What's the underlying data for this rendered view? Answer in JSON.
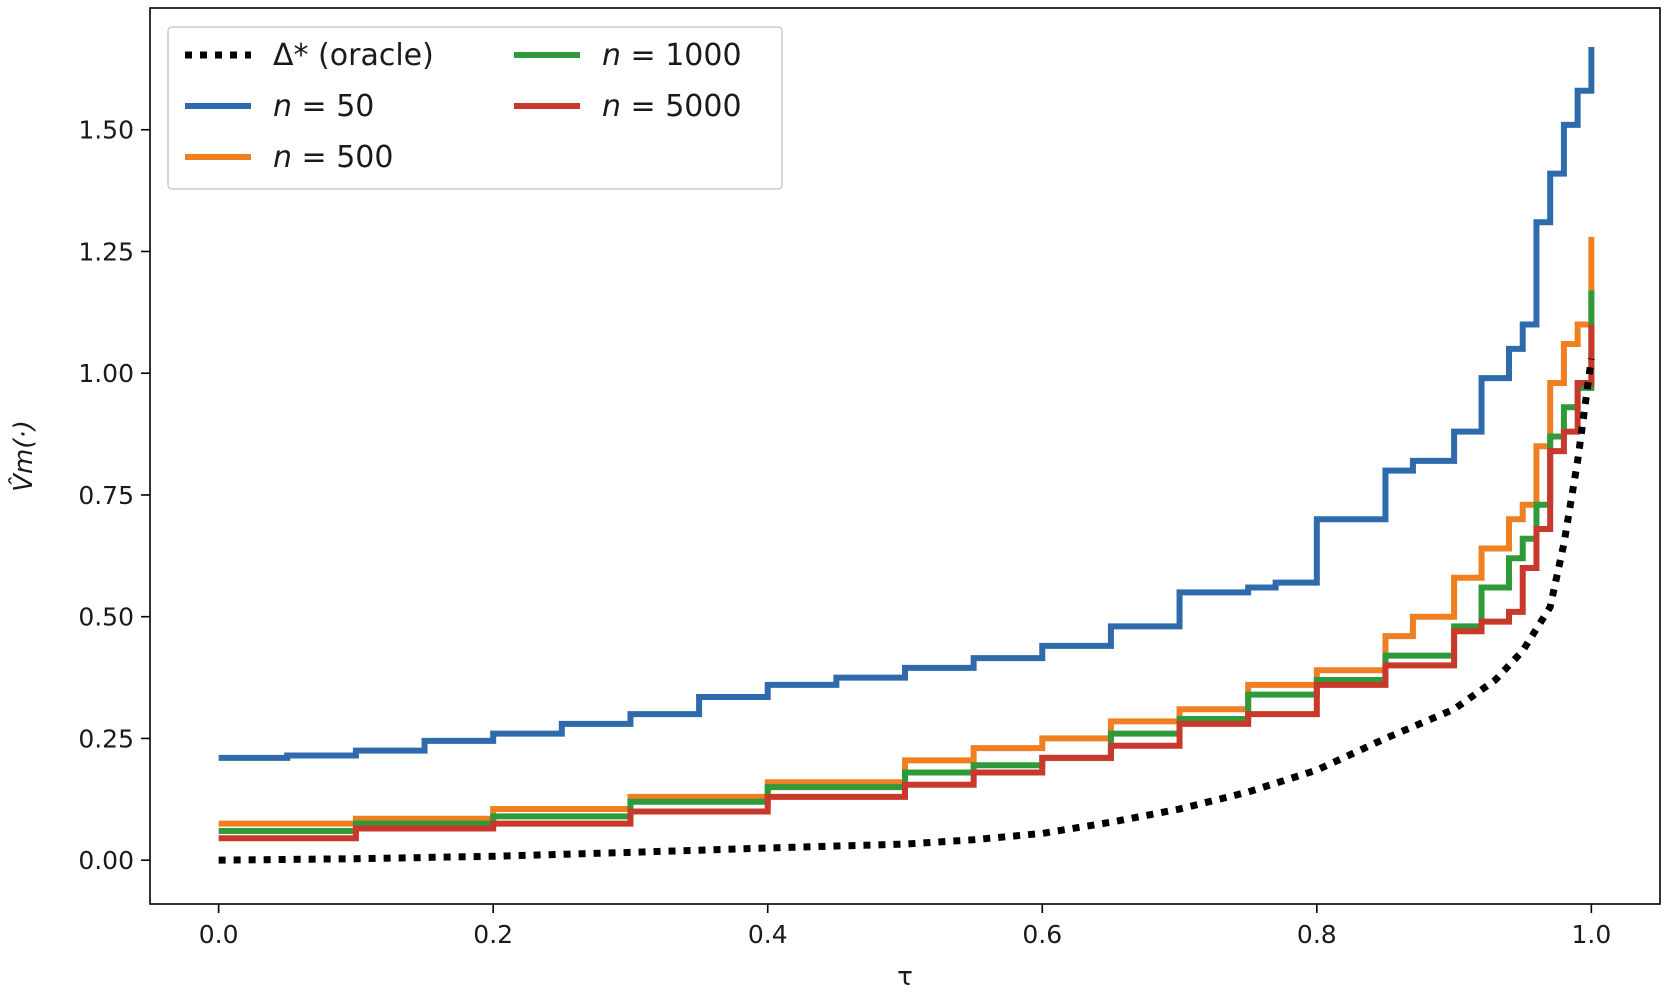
{
  "chart_data": {
    "type": "line",
    "title": "",
    "xlabel": "τ",
    "ylabel": "V̂m(·)",
    "xlim": [
      -0.05,
      1.05
    ],
    "ylim": [
      -0.09,
      1.75
    ],
    "xticks": [
      0.0,
      0.2,
      0.4,
      0.6,
      0.8,
      1.0
    ],
    "xtick_labels": [
      "0.0",
      "0.2",
      "0.4",
      "0.6",
      "0.8",
      "1.0"
    ],
    "yticks": [
      0.0,
      0.25,
      0.5,
      0.75,
      1.0,
      1.25,
      1.5
    ],
    "ytick_labels": [
      "0.00",
      "0.25",
      "0.50",
      "0.75",
      "1.00",
      "1.25",
      "1.50"
    ],
    "grid": false,
    "legend_position": "top-left",
    "series": [
      {
        "name": "Δ* (oracle)",
        "label_prefix": "Δ* (oracle)",
        "label_value": "",
        "color": "#000000",
        "style": "dotted",
        "x": [
          0.0,
          0.1,
          0.2,
          0.3,
          0.4,
          0.5,
          0.55,
          0.6,
          0.65,
          0.7,
          0.75,
          0.8,
          0.85,
          0.9,
          0.93,
          0.95,
          0.97,
          0.98,
          0.99,
          1.0
        ],
        "y": [
          0.0,
          0.003,
          0.008,
          0.016,
          0.025,
          0.033,
          0.042,
          0.055,
          0.078,
          0.105,
          0.14,
          0.185,
          0.25,
          0.31,
          0.37,
          0.43,
          0.52,
          0.65,
          0.82,
          1.03
        ]
      },
      {
        "name": "n = 50",
        "label_prefix": "n",
        "label_value": " = 50",
        "color": "#2f6bac",
        "style": "solid",
        "x": [
          0.0,
          0.05,
          0.1,
          0.15,
          0.2,
          0.25,
          0.3,
          0.35,
          0.4,
          0.45,
          0.5,
          0.55,
          0.6,
          0.65,
          0.7,
          0.75,
          0.77,
          0.8,
          0.85,
          0.87,
          0.9,
          0.92,
          0.94,
          0.95,
          0.96,
          0.97,
          0.98,
          0.99,
          1.0
        ],
        "y": [
          0.21,
          0.215,
          0.225,
          0.245,
          0.26,
          0.28,
          0.3,
          0.335,
          0.36,
          0.375,
          0.395,
          0.415,
          0.44,
          0.48,
          0.55,
          0.56,
          0.57,
          0.7,
          0.8,
          0.82,
          0.88,
          0.99,
          1.05,
          1.1,
          1.31,
          1.41,
          1.51,
          1.58,
          1.67
        ]
      },
      {
        "name": "n = 500",
        "label_prefix": "n",
        "label_value": " = 500",
        "color": "#f07f22",
        "style": "solid",
        "x": [
          0.0,
          0.1,
          0.2,
          0.3,
          0.4,
          0.5,
          0.55,
          0.6,
          0.65,
          0.7,
          0.75,
          0.8,
          0.85,
          0.87,
          0.9,
          0.92,
          0.94,
          0.95,
          0.96,
          0.97,
          0.98,
          0.99,
          1.0
        ],
        "y": [
          0.075,
          0.085,
          0.105,
          0.13,
          0.16,
          0.205,
          0.23,
          0.25,
          0.285,
          0.31,
          0.36,
          0.39,
          0.46,
          0.5,
          0.58,
          0.64,
          0.7,
          0.73,
          0.85,
          0.98,
          1.06,
          1.1,
          1.28
        ]
      },
      {
        "name": "n = 1000",
        "label_prefix": "n",
        "label_value": " = 1000",
        "color": "#2f9a3a",
        "style": "solid",
        "x": [
          0.0,
          0.1,
          0.2,
          0.3,
          0.4,
          0.5,
          0.55,
          0.6,
          0.65,
          0.7,
          0.75,
          0.8,
          0.85,
          0.9,
          0.92,
          0.94,
          0.95,
          0.96,
          0.97,
          0.98,
          0.99,
          1.0
        ],
        "y": [
          0.06,
          0.075,
          0.09,
          0.12,
          0.15,
          0.18,
          0.195,
          0.21,
          0.26,
          0.29,
          0.34,
          0.37,
          0.42,
          0.48,
          0.56,
          0.62,
          0.66,
          0.73,
          0.87,
          0.93,
          0.97,
          1.17
        ]
      },
      {
        "name": "n = 5000",
        "label_prefix": "n",
        "label_value": " = 5000",
        "color": "#c8382b",
        "style": "solid",
        "x": [
          0.0,
          0.1,
          0.2,
          0.3,
          0.4,
          0.5,
          0.55,
          0.6,
          0.65,
          0.7,
          0.75,
          0.8,
          0.85,
          0.9,
          0.92,
          0.94,
          0.95,
          0.96,
          0.97,
          0.98,
          0.99,
          1.0
        ],
        "y": [
          0.045,
          0.065,
          0.075,
          0.1,
          0.13,
          0.155,
          0.18,
          0.21,
          0.235,
          0.28,
          0.3,
          0.36,
          0.4,
          0.47,
          0.49,
          0.51,
          0.6,
          0.68,
          0.84,
          0.88,
          0.98,
          1.1
        ]
      }
    ]
  }
}
